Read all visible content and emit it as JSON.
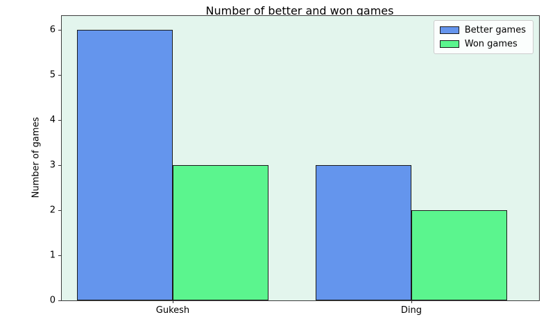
{
  "chart_data": {
    "type": "bar",
    "title": "Number of better and won games",
    "xlabel": "",
    "ylabel": "Number of games",
    "categories": [
      "Gukesh",
      "Ding"
    ],
    "series": [
      {
        "name": "Better games",
        "color": "#6495ED",
        "values": [
          6,
          3
        ]
      },
      {
        "name": "Won games",
        "color": "#5BF58E",
        "values": [
          3,
          2
        ]
      }
    ],
    "yticks": [
      0,
      1,
      2,
      3,
      4,
      5,
      6
    ],
    "ylim": [
      0,
      6.3
    ],
    "bar_width_data_units": 0.4,
    "grid": false,
    "legend_position": "upper right",
    "plot_background": "#E3F5ED",
    "figure_background": "#ffffff",
    "bar_edge_color": "#1a1a1a"
  }
}
